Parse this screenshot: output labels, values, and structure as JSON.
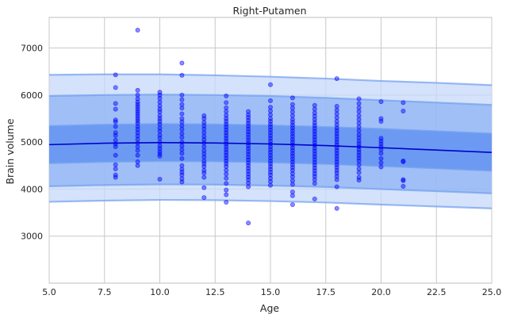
{
  "chart_data": {
    "type": "scatter",
    "title": "Right-Putamen",
    "xlabel": "Age",
    "ylabel": "Brain volume",
    "xlim": [
      5.0,
      25.0
    ],
    "ylim": [
      2000,
      7650
    ],
    "x_ticks": [
      5.0,
      7.5,
      10.0,
      12.5,
      15.0,
      17.5,
      20.0,
      22.5,
      25.0
    ],
    "x_tick_labels": [
      "5.0",
      "7.5",
      "10.0",
      "12.5",
      "15.0",
      "17.5",
      "20.0",
      "22.5",
      "25.0"
    ],
    "y_ticks": [
      3000,
      4000,
      5000,
      6000,
      7000
    ],
    "y_tick_labels": [
      "3000",
      "4000",
      "5000",
      "6000",
      "7000"
    ],
    "grid": true,
    "colors": {
      "points": "#0000ff",
      "median_line": "#0000cc",
      "band_inner": "#5b8ef0",
      "band_mid": "#8fb3f5",
      "band_outer": "#c5d8fa",
      "grid": "#c8c8c8"
    },
    "fit": {
      "x": [
        5,
        7.5,
        10,
        12.5,
        15,
        17.5,
        20,
        22.5,
        25
      ],
      "median": [
        4945,
        4975,
        4988,
        4980,
        4960,
        4925,
        4880,
        4830,
        4780
      ],
      "bands": [
        {
          "upper": [
            6430,
            6440,
            6440,
            6420,
            6390,
            6350,
            6300,
            6260,
            6210
          ],
          "lower": [
            3730,
            3755,
            3770,
            3765,
            3745,
            3715,
            3670,
            3630,
            3590
          ]
        },
        {
          "upper": [
            5980,
            6000,
            6010,
            6000,
            5980,
            5940,
            5890,
            5840,
            5790
          ],
          "lower": [
            4060,
            4085,
            4100,
            4095,
            4075,
            4045,
            4000,
            3955,
            3910
          ]
        },
        {
          "upper": [
            5340,
            5370,
            5385,
            5375,
            5355,
            5320,
            5280,
            5230,
            5180
          ],
          "lower": [
            4550,
            4580,
            4595,
            4590,
            4570,
            4535,
            4490,
            4440,
            4390
          ]
        }
      ]
    },
    "points": [
      {
        "x": 8,
        "y": [
          6430,
          6160,
          5820,
          5700,
          5470,
          5430,
          5330,
          5200,
          5140,
          5040,
          4960,
          4900,
          4720,
          4520,
          4430,
          4300,
          4250
        ]
      },
      {
        "x": 9,
        "y": [
          7380,
          6100,
          6000,
          5920,
          5850,
          5800,
          5750,
          5700,
          5650,
          5600,
          5550,
          5500,
          5450,
          5400,
          5330,
          5270,
          5200,
          5130,
          5060,
          4980,
          4900,
          4820,
          4720,
          4580,
          4500
        ]
      },
      {
        "x": 10,
        "y": [
          6060,
          6000,
          5930,
          5850,
          5770,
          5700,
          5640,
          5560,
          5500,
          5440,
          5380,
          5300,
          5230,
          5150,
          5080,
          5000,
          4920,
          4860,
          4800,
          4750,
          4700,
          4210
        ]
      },
      {
        "x": 11,
        "y": [
          6680,
          6420,
          6000,
          5900,
          5800,
          5720,
          5600,
          5500,
          5430,
          5350,
          5270,
          5180,
          5100,
          5000,
          4920,
          4840,
          4760,
          4650,
          4500,
          4420,
          4360,
          4300,
          4220,
          4150
        ]
      },
      {
        "x": 12,
        "y": [
          5560,
          5500,
          5420,
          5350,
          5280,
          5200,
          5120,
          5050,
          4980,
          4900,
          4820,
          4750,
          4680,
          4600,
          4540,
          4480,
          4400,
          4340,
          4250,
          4030,
          3820
        ]
      },
      {
        "x": 13,
        "y": [
          5980,
          5840,
          5730,
          5650,
          5570,
          5500,
          5440,
          5380,
          5320,
          5260,
          5200,
          5140,
          5080,
          5020,
          4960,
          4900,
          4840,
          4780,
          4720,
          4660,
          4600,
          4540,
          4480,
          4400,
          4320,
          4230,
          4120,
          3980,
          3880,
          3720
        ]
      },
      {
        "x": 14,
        "y": [
          5650,
          5580,
          5520,
          5460,
          5400,
          5340,
          5280,
          5220,
          5160,
          5100,
          5040,
          4980,
          4920,
          4860,
          4800,
          4740,
          4680,
          4620,
          4560,
          4500,
          4440,
          4380,
          4320,
          4260,
          4200,
          4130,
          4050,
          3280
        ]
      },
      {
        "x": 15,
        "y": [
          6220,
          5880,
          5740,
          5660,
          5580,
          5500,
          5440,
          5380,
          5320,
          5260,
          5200,
          5140,
          5080,
          5020,
          4960,
          4900,
          4840,
          4780,
          4720,
          4660,
          4600,
          4540,
          4480,
          4420,
          4360,
          4300,
          4230,
          4160,
          4080
        ]
      },
      {
        "x": 16,
        "y": [
          5940,
          5800,
          5720,
          5640,
          5560,
          5480,
          5420,
          5360,
          5300,
          5240,
          5180,
          5120,
          5060,
          5000,
          4940,
          4880,
          4820,
          4760,
          4700,
          4640,
          4580,
          4520,
          4460,
          4400,
          4330,
          4260,
          4180,
          4100,
          3940,
          3860,
          3670
        ]
      },
      {
        "x": 17,
        "y": [
          5780,
          5700,
          5620,
          5550,
          5480,
          5410,
          5350,
          5290,
          5230,
          5170,
          5110,
          5050,
          4990,
          4930,
          4870,
          4810,
          4750,
          4690,
          4630,
          4570,
          4510,
          4450,
          4390,
          4330,
          4270,
          4200,
          4120,
          3790
        ]
      },
      {
        "x": 18,
        "y": [
          6350,
          5760,
          5680,
          5600,
          5520,
          5440,
          5370,
          5300,
          5240,
          5180,
          5120,
          5060,
          5000,
          4940,
          4880,
          4820,
          4760,
          4700,
          4640,
          4580,
          4520,
          4460,
          4400,
          4340,
          4270,
          4200,
          4050,
          3590
        ]
      },
      {
        "x": 19,
        "y": [
          5920,
          5820,
          5730,
          5650,
          5560,
          5480,
          5400,
          5320,
          5240,
          5160,
          5090,
          5020,
          4960,
          4900,
          4840,
          4780,
          4720,
          4660,
          4600,
          4520,
          4430,
          4350,
          4250,
          4190
        ]
      },
      {
        "x": 20,
        "y": [
          5860,
          5500,
          5440,
          5080,
          5020,
          4960,
          4900,
          4840,
          4760,
          4650,
          4560,
          4470
        ]
      },
      {
        "x": 21,
        "y": [
          5840,
          5660,
          4600,
          4580,
          4200,
          4180,
          4060
        ]
      }
    ]
  }
}
